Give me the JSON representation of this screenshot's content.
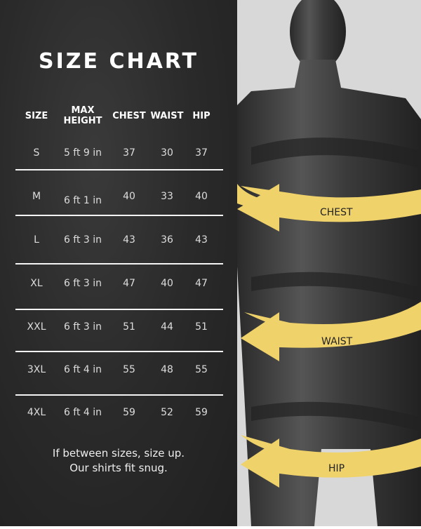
{
  "title": "SIZE CHART",
  "headers": [
    "SIZE",
    "MAX\nHEIGHT",
    "CHEST",
    "WAIST",
    "HIP"
  ],
  "rows": [
    [
      "S",
      "5 ft 9 in",
      "37",
      "30",
      "37"
    ],
    [
      "M",
      "6 ft 1 in",
      "40",
      "33",
      "40"
    ],
    [
      "L",
      "6 ft 3 in",
      "43",
      "36",
      "43"
    ],
    [
      "XL",
      "6 ft 3 in",
      "47",
      "40",
      "47"
    ],
    [
      "XXL",
      "6 ft 3 in",
      "51",
      "44",
      "51"
    ],
    [
      "3XL",
      "6 ft 4 in",
      "55",
      "48",
      "55"
    ],
    [
      "4XL",
      "6 ft 4 in",
      "59",
      "52",
      "59"
    ]
  ],
  "note": [
    "If between sizes, size up.",
    "Our shirts fit snug."
  ],
  "diagram_labels": {
    "chest": "CHEST",
    "waist": "WAIST",
    "hip": "HIP"
  },
  "colors": {
    "background": "#2a2a2a",
    "arrow": "#f0d26a",
    "mannequin": "#3c3c3c"
  }
}
